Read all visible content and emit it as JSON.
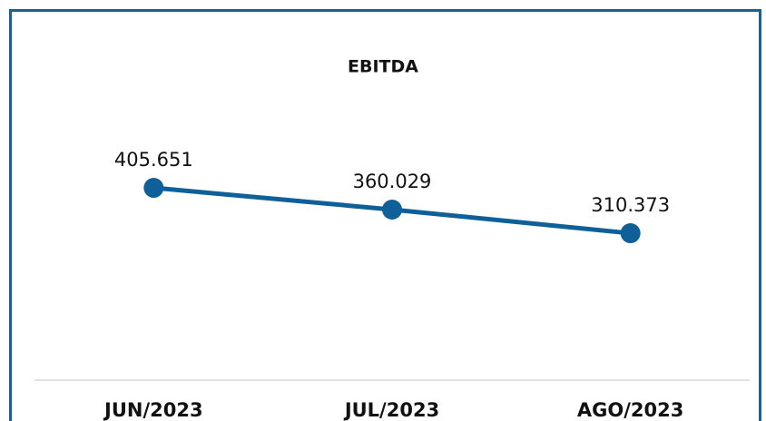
{
  "chart_data": {
    "type": "line",
    "title": "EBITDA",
    "categories": [
      "JUN/2023",
      "JUL/2023",
      "AGO/2023"
    ],
    "values": [
      405651,
      360029,
      310373
    ],
    "value_labels": [
      "405.651",
      "360.029",
      "310.373"
    ],
    "color": "#0f5f98"
  }
}
